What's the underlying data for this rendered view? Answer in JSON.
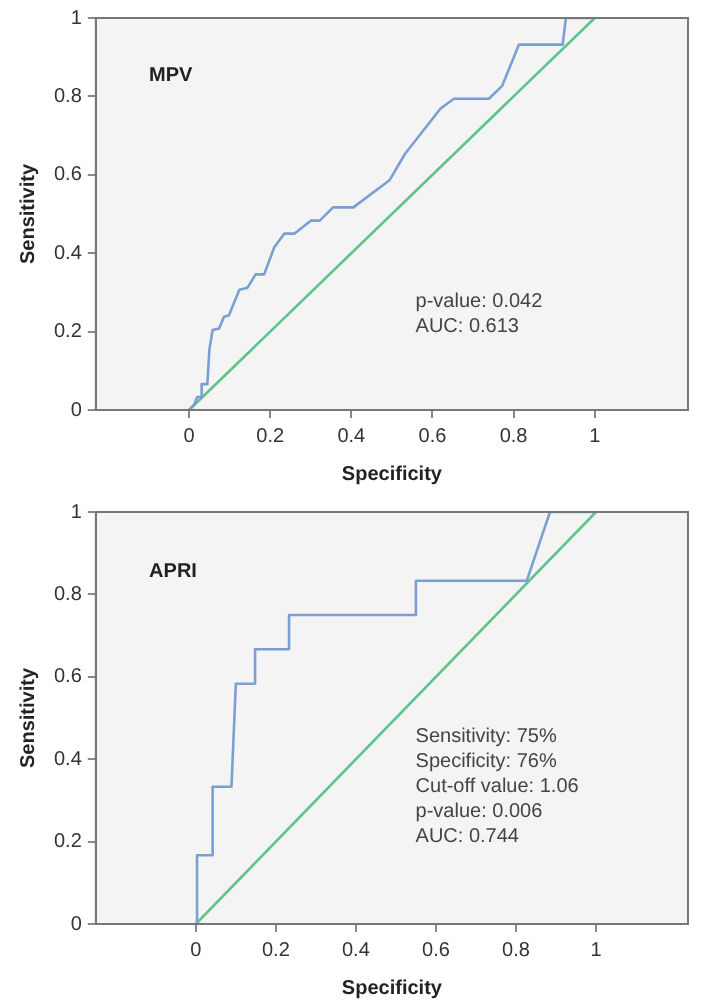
{
  "chart_data": [
    {
      "type": "line",
      "title": "MPV",
      "xlabel": "Specificity",
      "ylabel": "Sensitivity",
      "xlim": [
        -0.23,
        1.23
      ],
      "xticks": [
        0,
        0.2,
        0.4,
        0.6,
        0.8,
        1
      ],
      "ylim": [
        0,
        1
      ],
      "yticks": [
        0,
        0.2,
        0.4,
        0.6,
        0.8,
        1
      ],
      "grid": false,
      "series": [
        {
          "color": "#7b9fd4",
          "x": [
            0,
            0.012,
            0.02,
            0.028,
            0.031,
            0.045,
            0.05,
            0.058,
            0.074,
            0.086,
            0.098,
            0.124,
            0.144,
            0.164,
            0.185,
            0.21,
            0.235,
            0.26,
            0.3,
            0.322,
            0.355,
            0.405,
            0.494,
            0.532,
            0.62,
            0.653,
            0.739,
            0.772,
            0.813,
            0.921,
            0.929,
            1
          ],
          "values": [
            0,
            0.013,
            0.033,
            0.033,
            0.066,
            0.066,
            0.154,
            0.204,
            0.208,
            0.238,
            0.241,
            0.307,
            0.312,
            0.346,
            0.346,
            0.415,
            0.45,
            0.45,
            0.483,
            0.483,
            0.517,
            0.517,
            0.586,
            0.653,
            0.769,
            0.794,
            0.794,
            0.827,
            0.932,
            0.932,
            1,
            1
          ]
        },
        {
          "color": "#5dc389",
          "x": [
            0,
            1
          ],
          "values": [
            0,
            1
          ]
        }
      ],
      "annotations": [
        "p-value: 0.042",
        "AUC: 0.613"
      ]
    },
    {
      "type": "line",
      "title": "APRI",
      "xlabel": "Specificity",
      "ylabel": "Sensitivity",
      "xlim": [
        -0.25,
        1.23
      ],
      "xticks": [
        0,
        0.2,
        0.4,
        0.6,
        0.8,
        1
      ],
      "ylim": [
        0,
        1
      ],
      "yticks": [
        0,
        0.2,
        0.4,
        0.6,
        0.8,
        1
      ],
      "grid": false,
      "series": [
        {
          "color": "#7b9fd4",
          "x": [
            0,
            0.003,
            0.003,
            0.042,
            0.042,
            0.089,
            0.1,
            0.148,
            0.148,
            0.233,
            0.233,
            0.55,
            0.55,
            0.827,
            0.885,
            1
          ],
          "values": [
            0,
            0,
            0.167,
            0.167,
            0.333,
            0.333,
            0.583,
            0.583,
            0.667,
            0.667,
            0.75,
            0.75,
            0.833,
            0.833,
            1,
            1
          ]
        },
        {
          "color": "#5dc389",
          "x": [
            0,
            1
          ],
          "values": [
            0,
            1
          ]
        }
      ],
      "annotations": [
        "Sensitivity: 75%",
        "Specificity: 76%",
        "Cut-off value: 1.06",
        "p-value: 0.006",
        "AUC: 0.744"
      ]
    }
  ]
}
